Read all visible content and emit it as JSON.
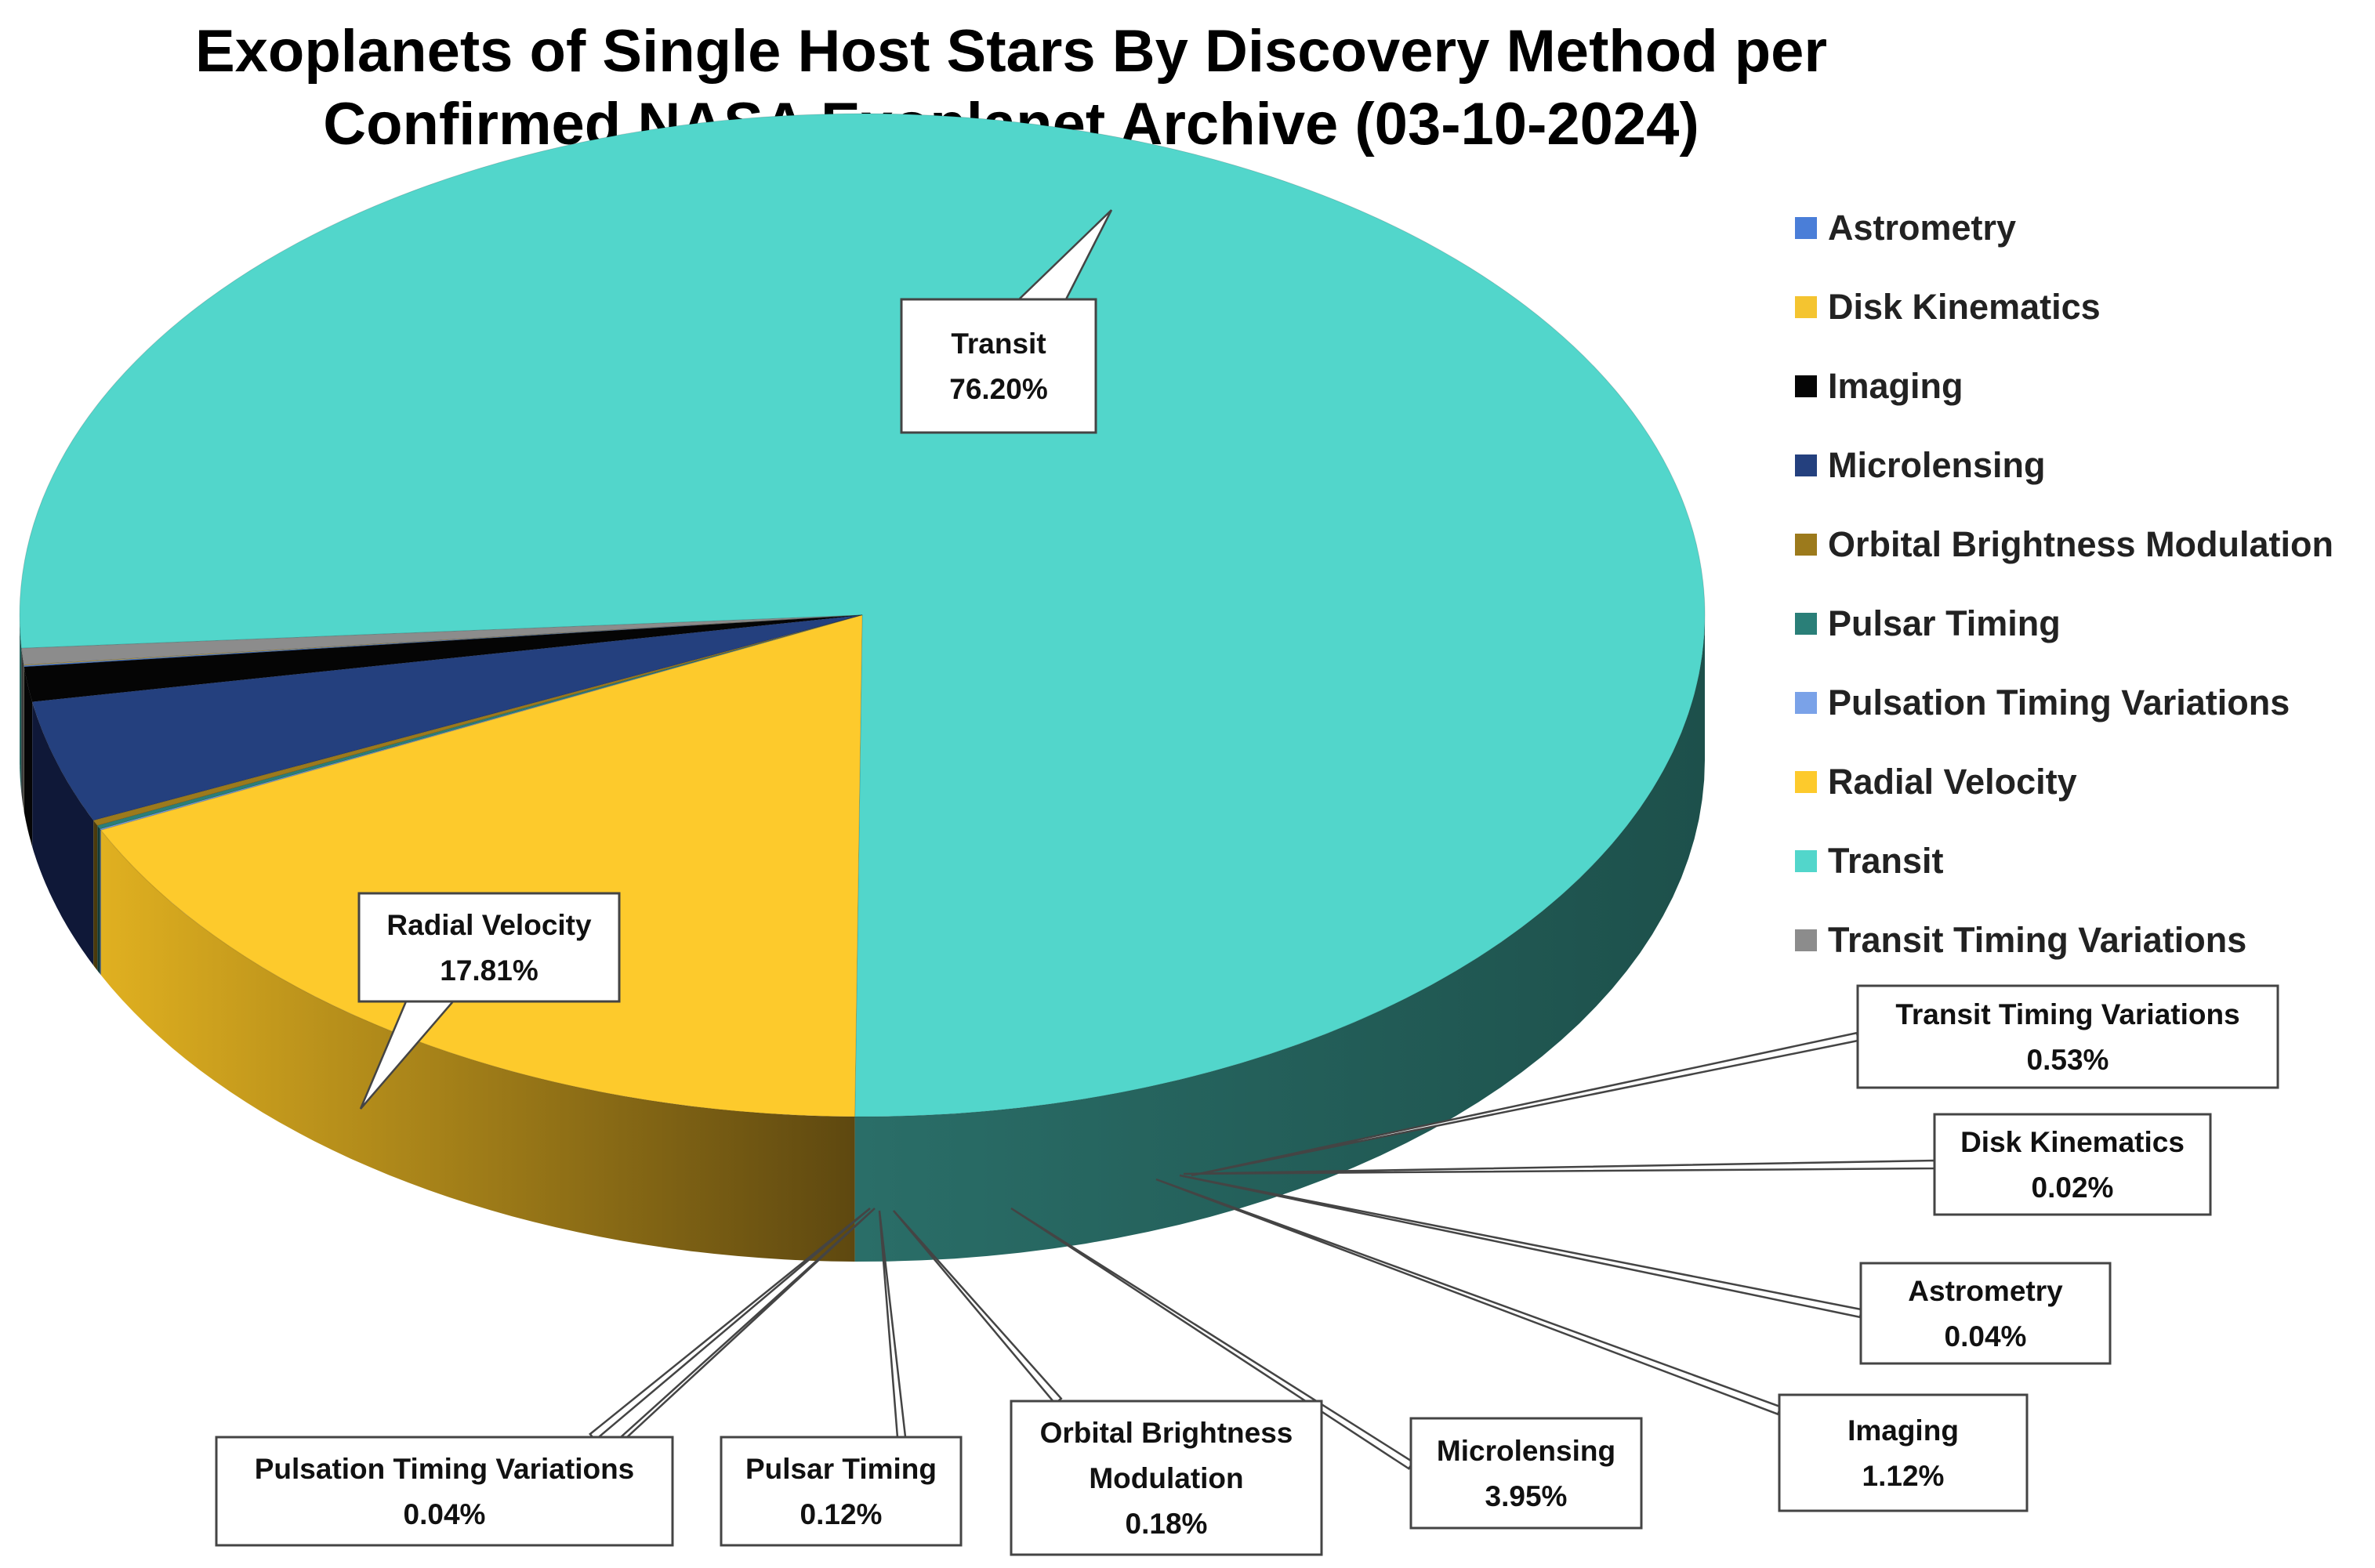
{
  "chart_data": {
    "type": "pie",
    "title": [
      "Exoplanets of Single Host Stars By Discovery Method per",
      "Confirmed NASA Exoplanet Archive (03-10-2024)"
    ],
    "legend_position": "right",
    "three_d": true,
    "slices": [
      {
        "name": "Transit",
        "value": 76.2,
        "label": "76.20%",
        "color": "#52d6cb",
        "side": "#1f5752"
      },
      {
        "name": "Transit Timing Variations",
        "value": 0.53,
        "label": "0.53%",
        "color": "#8c8c8c",
        "side": "#3a3a3a"
      },
      {
        "name": "Disk Kinematics",
        "value": 0.02,
        "label": "0.02%",
        "color": "#f4c430",
        "side": "#7a5e10"
      },
      {
        "name": "Astrometry",
        "value": 0.04,
        "label": "0.04%",
        "color": "#4a7ed8",
        "side": "#1e3560"
      },
      {
        "name": "Imaging",
        "value": 1.12,
        "label": "1.12%",
        "color": "#050505",
        "side": "#050505"
      },
      {
        "name": "Microlensing",
        "value": 3.95,
        "label": "3.95%",
        "color": "#24407e",
        "side": "#0f1838"
      },
      {
        "name": "Orbital Brightness Modulation",
        "value": 0.18,
        "label": "0.18%",
        "color": "#9c7a1c",
        "side": "#4a3a0c"
      },
      {
        "name": "Pulsar Timing",
        "value": 0.12,
        "label": "0.12%",
        "color": "#2a7f78",
        "side": "#123a36"
      },
      {
        "name": "Pulsation Timing Variations",
        "value": 0.04,
        "label": "0.04%",
        "color": "#7aa2e8",
        "side": "#2e4470"
      },
      {
        "name": "Radial Velocity",
        "value": 17.81,
        "label": "17.81%",
        "color": "#fdca2c",
        "side": "#8a6a16"
      }
    ],
    "legend": [
      {
        "name": "Astrometry",
        "color": "#4a7ed8"
      },
      {
        "name": "Disk Kinematics",
        "color": "#f4c430"
      },
      {
        "name": "Imaging",
        "color": "#050505"
      },
      {
        "name": "Microlensing",
        "color": "#24407e"
      },
      {
        "name": "Orbital Brightness Modulation",
        "color": "#9c7a1c"
      },
      {
        "name": "Pulsar Timing",
        "color": "#2a7f78"
      },
      {
        "name": "Pulsation Timing Variations",
        "color": "#7aa2e8"
      },
      {
        "name": "Radial Velocity",
        "color": "#fdca2c"
      },
      {
        "name": "Transit",
        "color": "#52d6cb"
      },
      {
        "name": "Transit Timing Variations",
        "color": "#8c8c8c"
      }
    ],
    "data_labels": [
      {
        "slice": "Transit",
        "lines": [
          "Transit",
          "76.20%"
        ]
      },
      {
        "slice": "Radial Velocity",
        "lines": [
          "Radial Velocity",
          "17.81%"
        ]
      },
      {
        "slice": "Transit Timing Variations",
        "lines": [
          "Transit Timing Variations",
          "0.53%"
        ]
      },
      {
        "slice": "Disk Kinematics",
        "lines": [
          "Disk Kinematics",
          "0.02%"
        ]
      },
      {
        "slice": "Astrometry",
        "lines": [
          "Astrometry",
          "0.04%"
        ]
      },
      {
        "slice": "Imaging",
        "lines": [
          "Imaging",
          "1.12%"
        ]
      },
      {
        "slice": "Microlensing",
        "lines": [
          "Microlensing",
          "3.95%"
        ]
      },
      {
        "slice": "Orbital Brightness Modulation",
        "lines": [
          "Orbital Brightness",
          "Modulation",
          "0.18%"
        ]
      },
      {
        "slice": "Pulsar Timing",
        "lines": [
          "Pulsar Timing",
          "0.12%"
        ]
      },
      {
        "slice": "Pulsation Timing Variations",
        "lines": [
          "Pulsation Timing Variations",
          "0.04%"
        ]
      }
    ]
  }
}
